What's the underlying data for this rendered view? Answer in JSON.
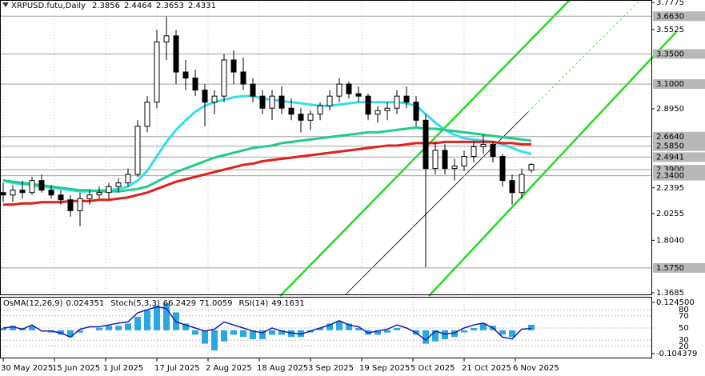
{
  "chart_data": [
    {
      "type": "candlestick",
      "title": "XRPUSD.futu,Daily",
      "x_labels": [
        "30 May 2025",
        "15 Jun 2025",
        "1 Jul 2025",
        "17 Jul 2025",
        "2 Aug 2025",
        "18 Aug 2025",
        "3 Sep 2025",
        "19 Sep 2025",
        "5 Oct 2025",
        "21 Oct 2025",
        "6 Nov 2025"
      ],
      "open": [
        2.2,
        2.18,
        2.22,
        2.2,
        2.3,
        2.22,
        2.18,
        2.14,
        2.05,
        2.15,
        2.18,
        2.2,
        2.25,
        2.28,
        2.35,
        2.75,
        2.95,
        3.45,
        3.5,
        3.2,
        3.15,
        3.05,
        2.95,
        3.0,
        3.3,
        3.2,
        3.1,
        3.0,
        2.9,
        3.0,
        2.9,
        2.85,
        2.8,
        2.85,
        2.92,
        3.0,
        3.1,
        3.02,
        3.0,
        2.85,
        2.88,
        2.9,
        3.0,
        2.95,
        2.8,
        2.4,
        2.55,
        2.4,
        2.42,
        2.5,
        2.58,
        2.6,
        2.5,
        2.3,
        2.2,
        2.3856
      ],
      "high": [
        2.28,
        2.26,
        2.3,
        2.33,
        2.35,
        2.26,
        2.22,
        2.18,
        2.2,
        2.22,
        2.25,
        2.28,
        2.32,
        2.4,
        2.8,
        3.0,
        3.55,
        3.66,
        3.55,
        3.3,
        3.22,
        3.1,
        3.05,
        3.35,
        3.38,
        3.32,
        3.15,
        3.05,
        3.05,
        3.08,
        2.98,
        2.9,
        2.88,
        2.95,
        3.05,
        3.15,
        3.12,
        3.08,
        3.02,
        2.92,
        2.95,
        3.05,
        3.08,
        3.0,
        2.85,
        2.62,
        2.6,
        2.48,
        2.55,
        2.62,
        2.68,
        2.62,
        2.52,
        2.35,
        2.4,
        2.4464
      ],
      "low": [
        2.12,
        2.12,
        2.15,
        2.18,
        2.2,
        2.15,
        2.1,
        2.0,
        1.92,
        2.1,
        2.15,
        2.15,
        2.2,
        2.25,
        2.33,
        2.7,
        2.9,
        3.3,
        3.1,
        3.05,
        3.0,
        2.75,
        2.85,
        2.95,
        3.1,
        3.05,
        2.95,
        2.85,
        2.8,
        2.85,
        2.8,
        2.7,
        2.72,
        2.8,
        2.88,
        2.95,
        2.98,
        2.95,
        2.8,
        2.78,
        2.8,
        2.85,
        2.9,
        2.75,
        1.58,
        2.35,
        2.35,
        2.3,
        2.38,
        2.45,
        2.52,
        2.45,
        2.25,
        2.1,
        2.15,
        2.3653
      ],
      "close": [
        2.18,
        2.22,
        2.2,
        2.3,
        2.22,
        2.18,
        2.14,
        2.05,
        2.15,
        2.18,
        2.2,
        2.25,
        2.28,
        2.35,
        2.75,
        2.95,
        3.45,
        3.5,
        3.2,
        3.15,
        3.05,
        2.95,
        3.0,
        3.3,
        3.2,
        3.1,
        3.0,
        2.9,
        3.0,
        2.9,
        2.85,
        2.8,
        2.85,
        2.92,
        3.0,
        3.1,
        3.02,
        3.0,
        2.85,
        2.88,
        2.9,
        3.0,
        2.95,
        2.8,
        2.4,
        2.55,
        2.4,
        2.42,
        2.5,
        2.58,
        2.6,
        2.5,
        2.3,
        2.2,
        2.35,
        2.4331
      ],
      "series": [
        {
          "name": "MA fast",
          "color": "#33ddee",
          "values": [
            2.3,
            2.28,
            2.27,
            2.26,
            2.25,
            2.24,
            2.23,
            2.22,
            2.21,
            2.21,
            2.22,
            2.22,
            2.23,
            2.25,
            2.3,
            2.38,
            2.5,
            2.62,
            2.72,
            2.8,
            2.87,
            2.92,
            2.95,
            2.97,
            2.99,
            3.0,
            3.0,
            2.98,
            2.97,
            2.96,
            2.95,
            2.94,
            2.93,
            2.92,
            2.92,
            2.93,
            2.94,
            2.95,
            2.95,
            2.95,
            2.95,
            2.95,
            2.94,
            2.92,
            2.85,
            2.78,
            2.72,
            2.68,
            2.65,
            2.64,
            2.63,
            2.62,
            2.6,
            2.57,
            2.54,
            2.52
          ]
        },
        {
          "name": "MA mid",
          "color": "#22cc88",
          "values": [
            2.3,
            2.29,
            2.28,
            2.27,
            2.26,
            2.25,
            2.24,
            2.23,
            2.22,
            2.22,
            2.21,
            2.21,
            2.21,
            2.22,
            2.23,
            2.25,
            2.29,
            2.33,
            2.37,
            2.4,
            2.43,
            2.46,
            2.49,
            2.51,
            2.53,
            2.55,
            2.57,
            2.58,
            2.59,
            2.61,
            2.62,
            2.63,
            2.64,
            2.65,
            2.66,
            2.67,
            2.68,
            2.69,
            2.7,
            2.7,
            2.71,
            2.72,
            2.73,
            2.74,
            2.73,
            2.73,
            2.72,
            2.71,
            2.7,
            2.69,
            2.68,
            2.67,
            2.66,
            2.65,
            2.64,
            2.63
          ]
        },
        {
          "name": "MA slow",
          "color": "#e0201a",
          "values": [
            2.1,
            2.1,
            2.11,
            2.11,
            2.12,
            2.12,
            2.12,
            2.13,
            2.13,
            2.13,
            2.14,
            2.14,
            2.15,
            2.16,
            2.18,
            2.2,
            2.23,
            2.26,
            2.29,
            2.31,
            2.33,
            2.35,
            2.37,
            2.39,
            2.41,
            2.43,
            2.44,
            2.46,
            2.47,
            2.48,
            2.49,
            2.5,
            2.51,
            2.52,
            2.53,
            2.54,
            2.55,
            2.56,
            2.57,
            2.58,
            2.59,
            2.59,
            2.6,
            2.61,
            2.61,
            2.61,
            2.62,
            2.62,
            2.62,
            2.62,
            2.62,
            2.62,
            2.61,
            2.61,
            2.6,
            2.6
          ]
        }
      ],
      "ylim": [
        1.3685,
        3.7775
      ],
      "yticks": [
        3.7775,
        3.5525,
        {
          "value": 2.895,
          "label": "2.8950"
        },
        2.2395,
        2.0255,
        {
          "value": 1.804,
          "label": "1.8040"
        },
        1.3685
      ],
      "levels": [
        {
          "value": 3.663,
          "label": "3.6630"
        },
        {
          "value": 3.35,
          "label": "3.3500"
        },
        {
          "value": 3.1,
          "label": "3.1000"
        },
        {
          "value": 2.664,
          "label": "2.6640"
        },
        {
          "value": 2.585,
          "label": "2.5850"
        },
        2.4941,
        {
          "value": 2.39,
          "label": "2.3900"
        },
        {
          "value": 2.34,
          "label": "2.3400"
        },
        {
          "value": 1.575,
          "label": "1.5750"
        }
      ],
      "candle_color": "#000000"
    },
    {
      "type": "oscillator",
      "readouts": [
        {
          "name": "Stoch(5,3,3)",
          "values": [
            66.2429,
            71.0059
          ]
        }
      ],
      "series": [
        {
          "name": "OsMA(12,26,9)",
          "color": "#29a8e0",
          "values": [
            0.01,
            0.02,
            0.01,
            0.02,
            0.0,
            -0.01,
            -0.02,
            -0.03,
            -0.01,
            0.0,
            0.01,
            0.02,
            0.02,
            0.03,
            0.06,
            0.09,
            0.11,
            0.12,
            0.08,
            0.03,
            -0.02,
            -0.06,
            -0.09,
            -0.05,
            -0.02,
            -0.03,
            -0.04,
            -0.04,
            -0.02,
            -0.02,
            -0.03,
            -0.03,
            -0.01,
            0.01,
            0.03,
            0.04,
            0.03,
            0.01,
            -0.02,
            -0.02,
            -0.01,
            0.01,
            0.0,
            -0.02,
            -0.06,
            -0.05,
            -0.04,
            -0.03,
            -0.01,
            0.01,
            0.03,
            0.02,
            -0.02,
            -0.03,
            0.0,
            0.024351
          ]
        },
        {
          "name": "RSI(14)",
          "color": "#1a1aa8",
          "axis": "y2",
          "values": [
            50,
            52,
            48,
            55,
            45,
            45,
            42,
            35,
            48,
            52,
            52,
            55,
            58,
            60,
            75,
            80,
            85,
            82,
            60,
            55,
            50,
            45,
            48,
            60,
            55,
            50,
            45,
            42,
            50,
            45,
            42,
            40,
            45,
            50,
            55,
            62,
            55,
            52,
            42,
            45,
            48,
            55,
            50,
            42,
            30,
            45,
            40,
            42,
            50,
            55,
            58,
            50,
            35,
            32,
            48,
            49.1631
          ]
        }
      ],
      "ylim": [
        -0.104379,
        0.1245
      ],
      "yticks": [
        {
          "value": 0.1245,
          "label": "0.124500"
        },
        -0.104379
      ],
      "y2lim": [
        0,
        100
      ],
      "y2ticks": [
        80,
        70,
        50,
        30,
        20
      ]
    }
  ]
}
